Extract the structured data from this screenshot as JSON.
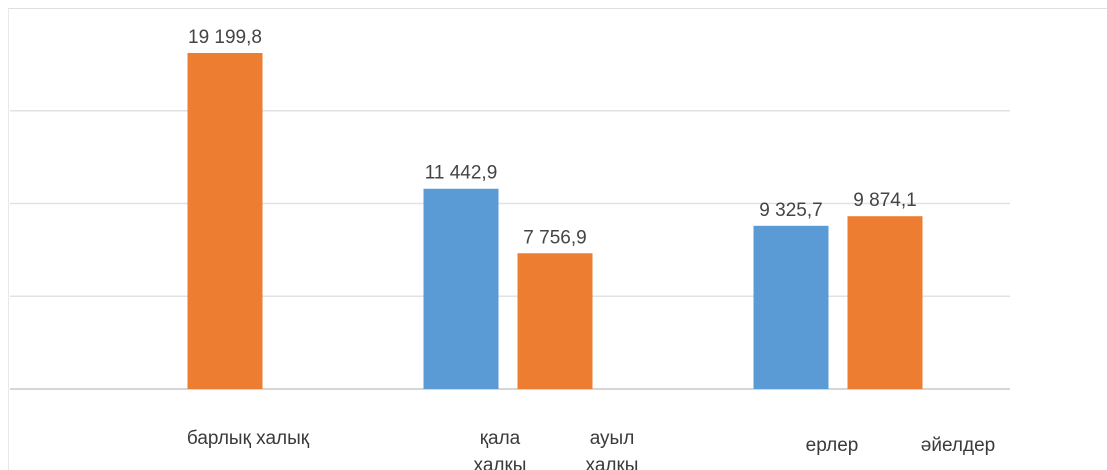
{
  "chart_data": {
    "type": "bar",
    "ylim": [
      0,
      20000
    ],
    "grid": true,
    "legend": "none",
    "colors": {
      "blue": "#5b9bd5",
      "orange": "#ed7d31"
    },
    "bars": [
      {
        "category": "барлық халық",
        "value": 19199.8,
        "label": "19 199,8",
        "color": "orange"
      },
      {
        "category": "қала халқы",
        "value": 11442.9,
        "label": "11 442,9",
        "color": "blue"
      },
      {
        "category": "ауыл халқы",
        "value": 7756.9,
        "label": "7 756,9",
        "color": "orange"
      },
      {
        "category": "ерлер",
        "value": 9325.7,
        "label": "9 325,7",
        "color": "blue"
      },
      {
        "category": "әйелдер",
        "value": 9874.1,
        "label": "9 874,1",
        "color": "orange"
      }
    ],
    "category_labels": [
      {
        "lines": [
          "барлық халық"
        ]
      },
      {
        "lines": [
          "қала",
          "халқы"
        ]
      },
      {
        "lines": [
          "ауыл",
          "халқы"
        ]
      },
      {
        "lines": [
          "ерлер"
        ]
      },
      {
        "lines": [
          "әйелдер"
        ]
      }
    ]
  }
}
